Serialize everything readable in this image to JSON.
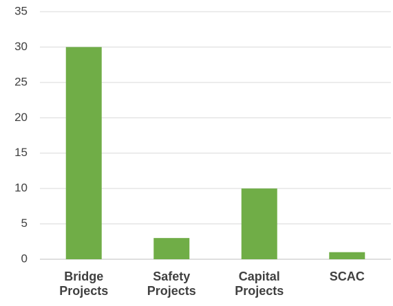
{
  "chart_data": {
    "type": "bar",
    "categories": [
      "Bridge Projects",
      "Safety Projects",
      "Capital Projects",
      "SCAC"
    ],
    "values": [
      30,
      3,
      10,
      1
    ],
    "color": "#70ad47",
    "ylim": [
      0,
      35
    ],
    "yticks": [
      0,
      5,
      10,
      15,
      20,
      25,
      30,
      35
    ],
    "grid": true
  }
}
